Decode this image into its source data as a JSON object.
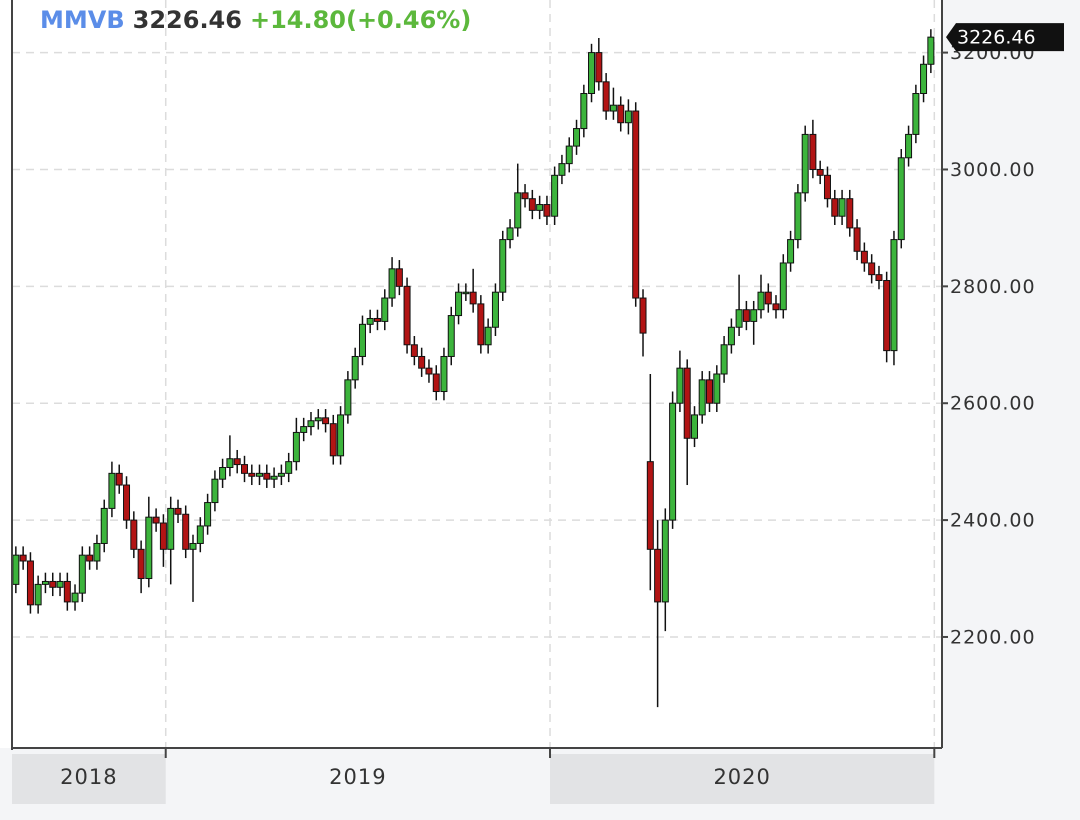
{
  "chart_data": {
    "type": "candlestick",
    "title": "MMVB",
    "change_label": "+14.80(+0.46%)",
    "up_color": "#3cb43c",
    "down_color": "#b21414",
    "grid": true,
    "xlim": [
      2018.6,
      2021.02
    ],
    "xticks": [
      2019,
      2020,
      2021
    ],
    "year_labels": [
      2018,
      2019,
      2020
    ],
    "ylim": [
      2010,
      3290
    ],
    "yticks": [
      {
        "value": 2200,
        "label": "2200.00"
      },
      {
        "value": 2400,
        "label": "2400.00"
      },
      {
        "value": 2600,
        "label": "2600.00"
      },
      {
        "value": 2800,
        "label": "2800.00"
      },
      {
        "value": 3000,
        "label": "3000.00"
      },
      {
        "value": 3200,
        "label": "3200.00"
      }
    ],
    "x": [
      2018.61,
      2018.629,
      2018.648,
      2018.668,
      2018.687,
      2018.706,
      2018.725,
      2018.744,
      2018.764,
      2018.783,
      2018.802,
      2018.821,
      2018.84,
      2018.86,
      2018.879,
      2018.898,
      2018.917,
      2018.936,
      2018.956,
      2018.975,
      2018.994,
      2019.013,
      2019.032,
      2019.052,
      2019.071,
      2019.09,
      2019.109,
      2019.128,
      2019.148,
      2019.167,
      2019.186,
      2019.205,
      2019.224,
      2019.244,
      2019.263,
      2019.282,
      2019.301,
      2019.32,
      2019.34,
      2019.359,
      2019.378,
      2019.397,
      2019.416,
      2019.436,
      2019.455,
      2019.474,
      2019.493,
      2019.512,
      2019.532,
      2019.551,
      2019.57,
      2019.589,
      2019.608,
      2019.628,
      2019.647,
      2019.666,
      2019.685,
      2019.704,
      2019.724,
      2019.743,
      2019.762,
      2019.781,
      2019.8,
      2019.82,
      2019.839,
      2019.858,
      2019.877,
      2019.896,
      2019.916,
      2019.935,
      2019.954,
      2019.973,
      2019.992,
      2020.012,
      2020.031,
      2020.05,
      2020.069,
      2020.088,
      2020.108,
      2020.127,
      2020.146,
      2020.165,
      2020.184,
      2020.204,
      2020.223,
      2020.242,
      2020.261,
      2020.28,
      2020.3,
      2020.319,
      2020.338,
      2020.357,
      2020.376,
      2020.396,
      2020.415,
      2020.434,
      2020.453,
      2020.472,
      2020.492,
      2020.511,
      2020.53,
      2020.549,
      2020.568,
      2020.588,
      2020.607,
      2020.626,
      2020.645,
      2020.664,
      2020.684,
      2020.703,
      2020.722,
      2020.741,
      2020.76,
      2020.78,
      2020.799,
      2020.818,
      2020.837,
      2020.856,
      2020.876,
      2020.895,
      2020.914,
      2020.933,
      2020.952,
      2020.972,
      2020.991
    ],
    "open": [
      2290,
      2340,
      2330,
      2255,
      2290,
      2295,
      2285,
      2295,
      2260,
      2275,
      2340,
      2330,
      2360,
      2420,
      2480,
      2460,
      2400,
      2350,
      2300,
      2405,
      2395,
      2350,
      2420,
      2410,
      2350,
      2360,
      2390,
      2430,
      2470,
      2490,
      2505,
      2495,
      2480,
      2475,
      2480,
      2470,
      2475,
      2480,
      2500,
      2550,
      2560,
      2570,
      2575,
      2565,
      2510,
      2580,
      2640,
      2680,
      2735,
      2745,
      2740,
      2780,
      2830,
      2800,
      2700,
      2680,
      2660,
      2650,
      2620,
      2680,
      2750,
      2790,
      2790,
      2770,
      2700,
      2730,
      2790,
      2880,
      2900,
      2960,
      2950,
      2930,
      2940,
      2920,
      2990,
      3010,
      3040,
      3070,
      3130,
      3200,
      3150,
      3100,
      3110,
      3080,
      3100,
      2780,
      2500,
      2350,
      2260,
      2400,
      2600,
      2660,
      2540,
      2580,
      2640,
      2600,
      2650,
      2700,
      2730,
      2760,
      2740,
      2760,
      2790,
      2770,
      2760,
      2840,
      2880,
      2960,
      3060,
      3000,
      2990,
      2950,
      2920,
      2950,
      2900,
      2860,
      2840,
      2820,
      2810,
      2690,
      2880,
      3020,
      3060,
      3130,
      3180
    ],
    "high": [
      2355,
      2355,
      2345,
      2305,
      2310,
      2310,
      2310,
      2310,
      2290,
      2355,
      2355,
      2375,
      2435,
      2500,
      2495,
      2475,
      2415,
      2365,
      2440,
      2420,
      2410,
      2440,
      2435,
      2425,
      2375,
      2405,
      2445,
      2485,
      2505,
      2545,
      2520,
      2510,
      2495,
      2495,
      2495,
      2490,
      2495,
      2515,
      2575,
      2575,
      2585,
      2590,
      2590,
      2580,
      2595,
      2655,
      2695,
      2750,
      2760,
      2760,
      2795,
      2850,
      2845,
      2815,
      2715,
      2695,
      2675,
      2665,
      2695,
      2765,
      2805,
      2805,
      2830,
      2785,
      2745,
      2805,
      2895,
      2915,
      3010,
      2975,
      2965,
      2955,
      2955,
      3005,
      3025,
      3055,
      3085,
      3145,
      3215,
      3225,
      3165,
      3140,
      3125,
      3120,
      3115,
      2795,
      2650,
      2400,
      2420,
      2620,
      2690,
      2675,
      2595,
      2655,
      2655,
      2665,
      2715,
      2745,
      2820,
      2775,
      2775,
      2820,
      2805,
      2785,
      2855,
      2895,
      2975,
      3075,
      3085,
      3015,
      3005,
      2965,
      2965,
      2965,
      2915,
      2875,
      2855,
      2835,
      2825,
      2895,
      3035,
      3075,
      3145,
      3195,
      3240
    ],
    "low": [
      2275,
      2315,
      2240,
      2240,
      2275,
      2270,
      2270,
      2245,
      2245,
      2260,
      2315,
      2315,
      2345,
      2405,
      2445,
      2385,
      2335,
      2275,
      2285,
      2380,
      2320,
      2290,
      2395,
      2335,
      2260,
      2345,
      2375,
      2415,
      2455,
      2475,
      2480,
      2465,
      2460,
      2460,
      2455,
      2455,
      2460,
      2465,
      2485,
      2535,
      2545,
      2555,
      2550,
      2495,
      2495,
      2565,
      2625,
      2665,
      2720,
      2725,
      2725,
      2765,
      2785,
      2685,
      2665,
      2645,
      2635,
      2605,
      2605,
      2665,
      2735,
      2775,
      2755,
      2685,
      2685,
      2715,
      2775,
      2865,
      2885,
      2935,
      2915,
      2915,
      2905,
      2905,
      2975,
      2995,
      3025,
      3055,
      3115,
      3135,
      3085,
      3085,
      3065,
      3060,
      2765,
      2680,
      2280,
      2080,
      2210,
      2385,
      2585,
      2460,
      2525,
      2565,
      2585,
      2585,
      2635,
      2685,
      2715,
      2725,
      2700,
      2745,
      2755,
      2745,
      2745,
      2825,
      2865,
      2945,
      2985,
      2975,
      2935,
      2905,
      2905,
      2885,
      2845,
      2825,
      2805,
      2795,
      2670,
      2665,
      2865,
      3005,
      3045,
      3115,
      3165
    ],
    "close": [
      2340,
      2330,
      2255,
      2290,
      2295,
      2285,
      2295,
      2260,
      2275,
      2340,
      2330,
      2360,
      2420,
      2480,
      2460,
      2400,
      2350,
      2300,
      2405,
      2395,
      2350,
      2420,
      2410,
      2350,
      2360,
      2390,
      2430,
      2470,
      2490,
      2505,
      2495,
      2480,
      2475,
      2480,
      2470,
      2475,
      2480,
      2500,
      2550,
      2560,
      2570,
      2575,
      2565,
      2510,
      2580,
      2640,
      2680,
      2735,
      2745,
      2740,
      2780,
      2830,
      2800,
      2700,
      2680,
      2660,
      2650,
      2620,
      2680,
      2750,
      2790,
      2790,
      2770,
      2700,
      2730,
      2790,
      2880,
      2900,
      2960,
      2950,
      2930,
      2940,
      2920,
      2990,
      3010,
      3040,
      3070,
      3130,
      3200,
      3150,
      3100,
      3110,
      3080,
      3100,
      2780,
      2720,
      2350,
      2260,
      2400,
      2600,
      2660,
      2540,
      2580,
      2640,
      2600,
      2650,
      2700,
      2730,
      2760,
      2740,
      2760,
      2790,
      2770,
      2760,
      2840,
      2880,
      2960,
      3060,
      3000,
      2990,
      2950,
      2920,
      2950,
      2900,
      2860,
      2840,
      2820,
      2810,
      2690,
      2880,
      3020,
      3060,
      3130,
      3180,
      3226.46
    ]
  }
}
